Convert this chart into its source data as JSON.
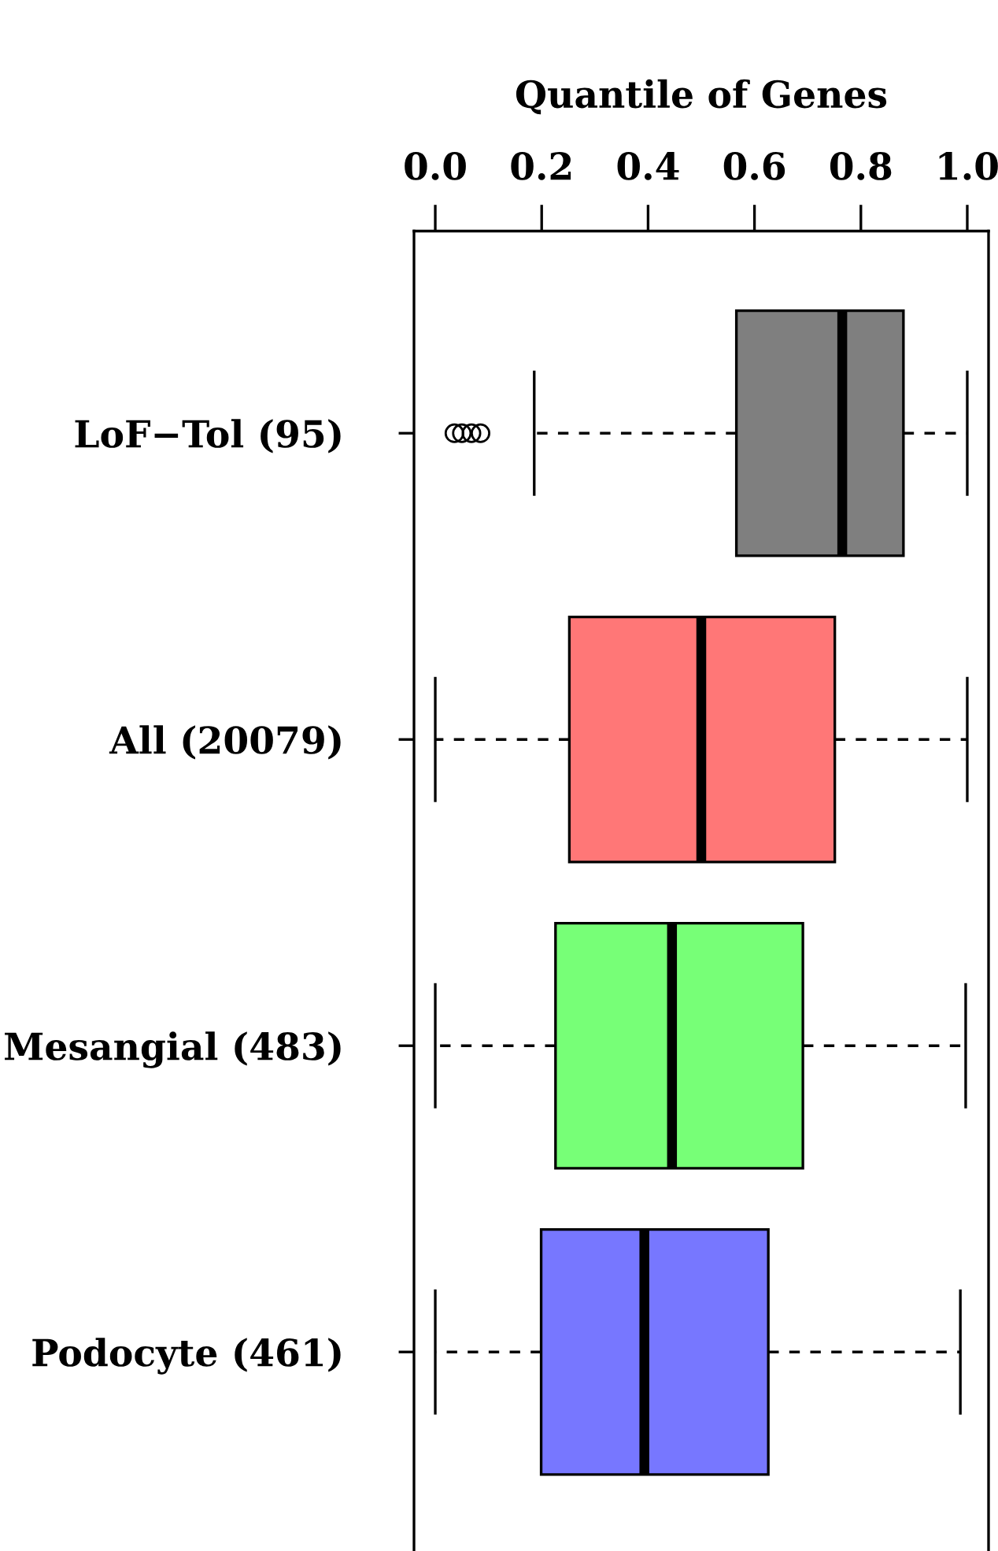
{
  "chart_data": {
    "type": "box",
    "orientation": "horizontal",
    "xlabel": "Quantile of Genes",
    "categories": [
      "LoF−Tol (95)",
      "All (20079)",
      "Mesangial (483)",
      "Podocyte (461)"
    ],
    "colors": [
      "#7f7f7f",
      "#ff7777",
      "#77ff77",
      "#7777ff"
    ],
    "boxes": [
      {
        "low": 0.186,
        "q1": 0.566,
        "median": 0.765,
        "q3": 0.88,
        "high": 1.0,
        "outliers": [
          0.036,
          0.05,
          0.068,
          0.085
        ]
      },
      {
        "low": 0.0,
        "q1": 0.252,
        "median": 0.5,
        "q3": 0.751,
        "high": 1.0
      },
      {
        "low": 0.0,
        "q1": 0.226,
        "median": 0.445,
        "q3": 0.691,
        "high": 0.997
      },
      {
        "low": 0.0,
        "q1": 0.199,
        "median": 0.393,
        "q3": 0.626,
        "high": 0.987
      }
    ],
    "xlim": [
      -0.04,
      1.04
    ],
    "xticks": [
      {
        "value": 0,
        "label": "0.0"
      },
      {
        "value": 0.2,
        "label": "0.2"
      },
      {
        "value": 0.4,
        "label": "0.4"
      },
      {
        "value": 0.6,
        "label": "0.6"
      },
      {
        "value": 0.8,
        "label": "0.8"
      },
      {
        "value": 1,
        "label": "1.0"
      }
    ],
    "grid": false
  }
}
